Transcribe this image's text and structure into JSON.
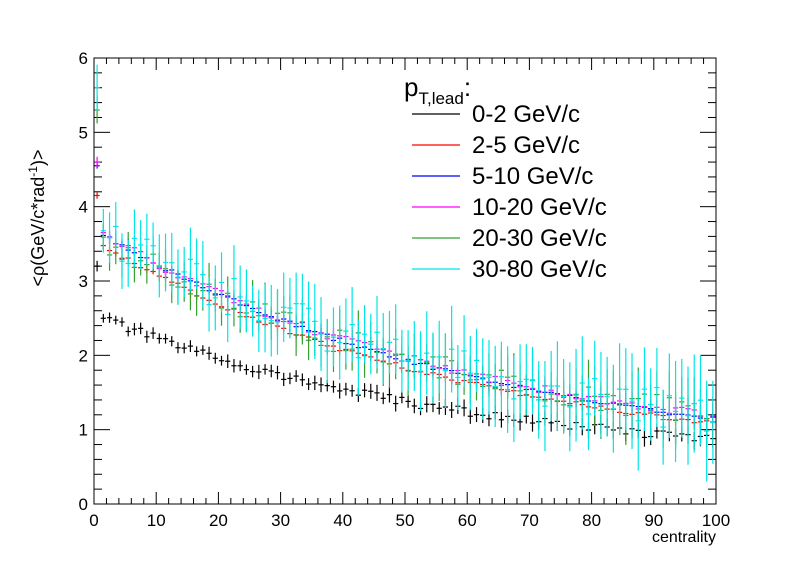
{
  "chart_data": {
    "type": "scatter",
    "title": "",
    "xlabel": "centrality",
    "ylabel": "<ρ(GeV/c*rad",
    "ylabel_sup": "-1",
    "ylabel_tail": ")>",
    "xlim": [
      0,
      100
    ],
    "ylim": [
      0,
      6
    ],
    "x_ticks": [
      0,
      10,
      20,
      30,
      40,
      50,
      60,
      70,
      80,
      90,
      100
    ],
    "y_ticks": [
      0,
      1,
      2,
      3,
      4,
      5,
      6
    ],
    "grid": false,
    "legend": {
      "placement": "top-right",
      "title_main": "p",
      "title_sub": "T,lead",
      "title_tail": ":"
    },
    "series": [
      {
        "name": "0-2 GeV/c",
        "color": "#000000",
        "a": 2.55,
        "c": 0.5,
        "k": 1.7,
        "noise": 0.06,
        "err": 0.08
      },
      {
        "name": "2-5 GeV/c",
        "color": "#ff0000",
        "a": 3.55,
        "c": 0.5,
        "k": 1.65,
        "noise": 0.03,
        "err": 0.05
      },
      {
        "name": "5-10 GeV/c",
        "color": "#0000ff",
        "a": 3.7,
        "c": 0.5,
        "k": 1.6,
        "noise": 0.03,
        "err": 0.05
      },
      {
        "name": "10-20 GeV/c",
        "color": "#ff00ff",
        "a": 3.7,
        "c": 0.55,
        "k": 1.6,
        "noise": 0.06,
        "err": 0.1
      },
      {
        "name": "20-30 GeV/c",
        "color": "#33a02c",
        "a": 3.6,
        "c": 0.55,
        "k": 1.55,
        "noise": 0.18,
        "err": 0.25
      },
      {
        "name": "30-80 GeV/c",
        "color": "#00e5e5",
        "a": 3.75,
        "c": 0.5,
        "k": 1.55,
        "noise": 0.28,
        "err": 0.4
      }
    ],
    "first_points": [
      3.2,
      4.15,
      4.55,
      4.6,
      5.3,
      5.6
    ],
    "bin_width": 1,
    "n_bins": 100
  }
}
